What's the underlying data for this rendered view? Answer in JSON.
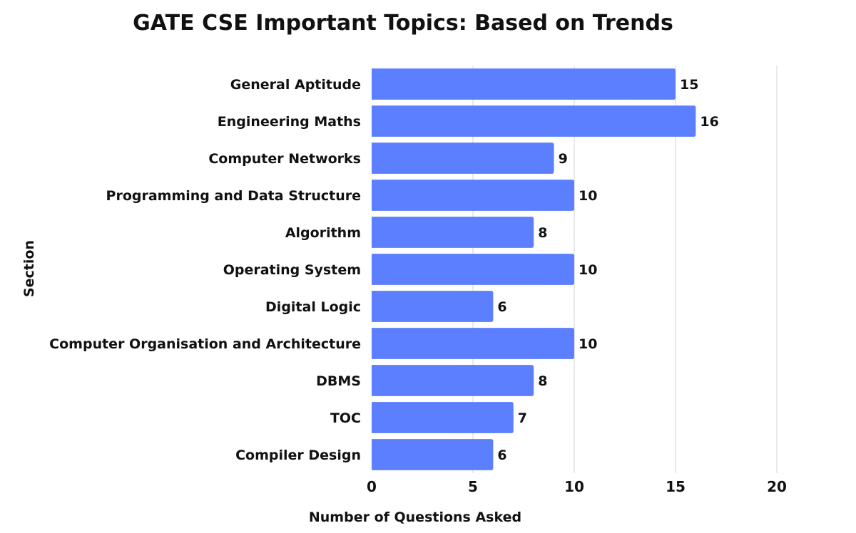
{
  "chart_data": {
    "type": "bar",
    "orientation": "horizontal",
    "title": "GATE CSE Important Topics: Based on Trends",
    "xlabel": "Number of Questions Asked",
    "ylabel": "Section",
    "categories": [
      "General Aptitude",
      "Engineering Maths",
      "Computer Networks",
      "Programming and Data Structure",
      "Algorithm",
      "Operating System",
      "Digital Logic",
      "Computer Organisation and Architecture",
      "DBMS",
      "TOC",
      "Compiler Design"
    ],
    "values": [
      15,
      16,
      9,
      10,
      8,
      10,
      6,
      10,
      8,
      7,
      6
    ],
    "xlim": [
      0,
      20
    ],
    "xticks": [
      0,
      5,
      10,
      15,
      20
    ],
    "grid": "vertical",
    "bar_color": "#5b7fff",
    "data_labels": true
  }
}
